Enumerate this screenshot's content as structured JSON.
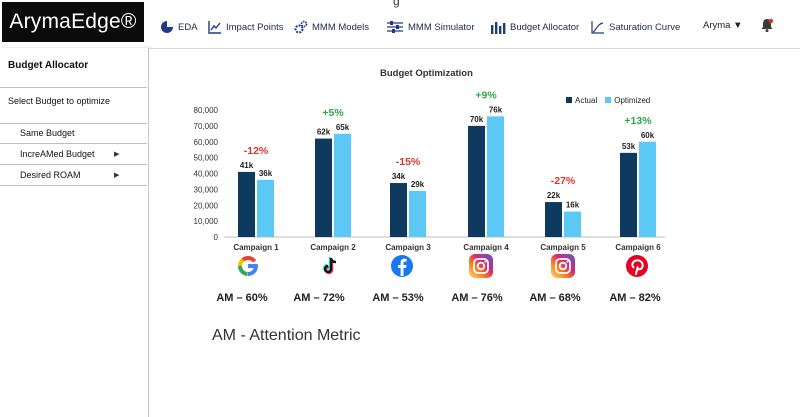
{
  "app": {
    "logo": "ArymaEdge®",
    "top_cut_text": "g"
  },
  "nav": [
    {
      "label": "EDA",
      "icon": "pie-chart-icon"
    },
    {
      "label": "Impact Points",
      "icon": "line-chart-icon"
    },
    {
      "label": "MMM Models",
      "icon": "gears-icon"
    },
    {
      "label": "MMM Simulator",
      "icon": "sliders-icon"
    },
    {
      "label": "Budget Allocator",
      "icon": "bar-chart-icon"
    },
    {
      "label": "Saturation Curve",
      "icon": "curve-chart-icon"
    }
  ],
  "user": {
    "name": "Aryma ▼"
  },
  "sidebar": {
    "title": "Budget Allocator",
    "subtitle": "Select Budget to optimize",
    "items": [
      {
        "label": "Same Budget",
        "arrow": ""
      },
      {
        "label": "IncreAMed Budget",
        "arrow": "▶"
      },
      {
        "label": "Desired ROAM",
        "arrow": "▶"
      }
    ]
  },
  "chart_data": {
    "type": "bar",
    "title": "Budget Optimization",
    "categories": [
      "Campaign 1",
      "Campaign 2",
      "Campaign 3",
      "Campaign 4",
      "Campaign 5",
      "Campaign 6"
    ],
    "series": [
      {
        "name": "Actual",
        "values": [
          41000,
          62000,
          34000,
          70000,
          22000,
          53000
        ],
        "labels": [
          "41k",
          "62k",
          "34k",
          "70k",
          "22k",
          "53k"
        ],
        "color": "#0d3a5e"
      },
      {
        "name": "Optimized",
        "values": [
          36000,
          65000,
          29000,
          76000,
          16000,
          60000
        ],
        "labels": [
          "36k",
          "65k",
          "29k",
          "76k",
          "16k",
          "60k"
        ],
        "color": "#5cc8f5"
      }
    ],
    "changes": [
      "-12%",
      "+5%",
      "-15%",
      "+9%",
      "-27%",
      "+13%"
    ],
    "change_colors": [
      "#d9352b",
      "#2da84b",
      "#d9352b",
      "#2da84b",
      "#d9352b",
      "#2da84b"
    ],
    "ylim": [
      0,
      80000
    ],
    "yticks": [
      "0",
      "10,000",
      "20,000",
      "30,000",
      "40,000",
      "50,000",
      "60,000",
      "70,000",
      "80,000"
    ],
    "ytick_values": [
      0,
      10000,
      20000,
      30000,
      40000,
      50000,
      60000,
      70000,
      80000
    ],
    "legend_position": "top-right",
    "grid": false
  },
  "platforms": [
    "google-icon",
    "tiktok-icon",
    "facebook-icon",
    "instagram-icon",
    "instagram-icon",
    "pinterest-icon"
  ],
  "attention": [
    "AM – 60%",
    "AM – 72%",
    "AM – 53%",
    "AM – 76%",
    "AM – 68%",
    "AM – 82%"
  ],
  "attention_note": "AM - Attention Metric"
}
